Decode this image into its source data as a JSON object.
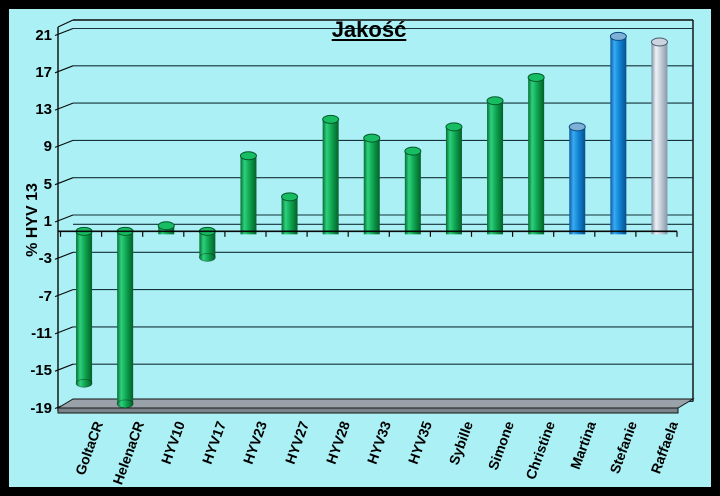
{
  "chart_data": {
    "type": "bar",
    "style": "3d-cylinder-bars",
    "title": "Jakość",
    "ylabel": "% HYV 13",
    "xlabel": "",
    "categories": [
      "GoltaCR",
      "HelenaCR",
      "HYV10",
      "HYV17",
      "HYV23",
      "HYV27",
      "HYV28",
      "HYV33",
      "HYV35",
      "Sybille",
      "Simone",
      "Christine",
      "Martina",
      "Stefanie",
      "Raffaela"
    ],
    "values": [
      -16.3,
      -18.5,
      0.6,
      -2.8,
      8.1,
      3.7,
      12.0,
      10.0,
      8.6,
      11.2,
      14.0,
      16.5,
      11.2,
      20.9,
      20.3
    ],
    "bar_colors": [
      "green",
      "green",
      "green",
      "green",
      "green",
      "green",
      "green",
      "green",
      "green",
      "green",
      "green",
      "green",
      "blue",
      "blue",
      "silver"
    ],
    "yticks": [
      21,
      17,
      13,
      9,
      5,
      1,
      -3,
      -7,
      -11,
      -15,
      -19
    ],
    "ylim": [
      -19,
      21
    ],
    "grid": true,
    "legend": false
  },
  "colors": {
    "background": "#aaf0f4",
    "frame_border": "#000000",
    "green_bar": "#0da34e",
    "blue_bar": "#0f84d2",
    "silver_bar": "#c2ccd6",
    "floor": "#98a2a8",
    "gridline": "#14333a",
    "text": "#000000"
  }
}
